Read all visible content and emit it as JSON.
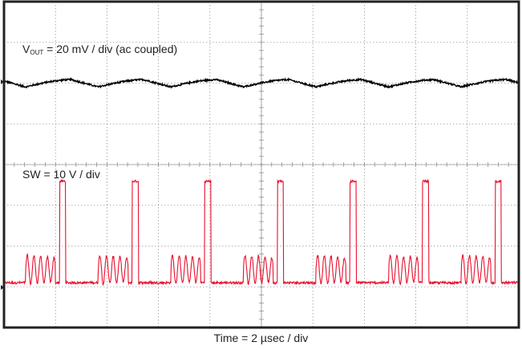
{
  "chart_data": {
    "type": "line",
    "ch1_label_main": "V",
    "ch1_label_sub": "OUT",
    "ch1_label_rest": " = 20 mV / div (ac coupled)",
    "ch2_label": "SW = 10 V / div",
    "xlabel": "Time = 2 µsec / div",
    "grid": true,
    "x_divisions": 10,
    "y_divisions": 8,
    "switching_period_us": 2.82,
    "series": [
      {
        "name": "VOUT",
        "color": "#000000",
        "baseline_div": 6.05,
        "ripple_mv_pp": 3.6,
        "noise_mv": 0.4
      },
      {
        "name": "SW",
        "color": "#e8102e",
        "high_v": 25.5,
        "low_v": 0.6,
        "ringing_amplitude_v": 7,
        "baseline_div": 0.04
      }
    ]
  }
}
